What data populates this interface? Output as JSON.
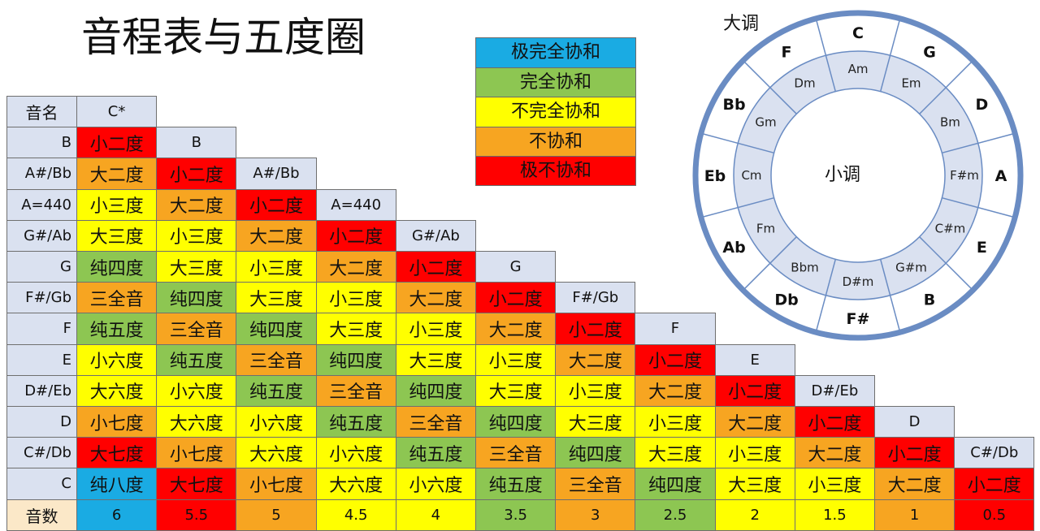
{
  "title": "音程表与五度圈",
  "legend": [
    {
      "label": "极完全协和",
      "color": "#1aabe3"
    },
    {
      "label": "完全协和",
      "color": "#8dc652"
    },
    {
      "label": "不完全协和",
      "color": "#ffff00"
    },
    {
      "label": "不协和",
      "color": "#f7a521"
    },
    {
      "label": "极不协和",
      "color": "#ff0000"
    }
  ],
  "chart_data": {
    "type": "table",
    "corner_label": "音名",
    "top_header": "C*",
    "bottom_label": "音数",
    "row_labels": [
      "B",
      "A#/Bb",
      "A=440",
      "G#/Ab",
      "G",
      "F#/Gb",
      "F",
      "E",
      "D#/Eb",
      "D",
      "C#/Db",
      "C"
    ],
    "step_headers": [
      "B",
      "A#/Bb",
      "A=440",
      "G#/Ab",
      "G",
      "F#/Gb",
      "F",
      "E",
      "D#/Eb",
      "D",
      "C#/Db"
    ],
    "interval_cycle": [
      "小二度",
      "大二度",
      "小三度",
      "大三度",
      "纯四度",
      "三全音",
      "纯五度",
      "小六度",
      "大六度",
      "小七度",
      "大七度",
      "纯八度"
    ],
    "interval_colors": [
      "#ff0000",
      "#f7a521",
      "#ffff00",
      "#ffff00",
      "#8dc652",
      "#f7a521",
      "#8dc652",
      "#ffff00",
      "#ffff00",
      "#f7a521",
      "#ff0000",
      "#1aabe3"
    ],
    "counts": [
      "6",
      "5.5",
      "5",
      "4.5",
      "4",
      "3.5",
      "3",
      "2.5",
      "2",
      "1.5",
      "1",
      "0.5"
    ],
    "count_colors": [
      "#1aabe3",
      "#ff0000",
      "#f7a521",
      "#ffff00",
      "#ffff00",
      "#8dc652",
      "#f7a521",
      "#8dc652",
      "#ffff00",
      "#ffff00",
      "#f7a521",
      "#ff0000"
    ]
  },
  "circle": {
    "major_label": "大调",
    "minor_label": "小调",
    "major_keys": [
      "C",
      "G",
      "D",
      "A",
      "E",
      "B",
      "F#",
      "Db",
      "Ab",
      "Eb",
      "Bb",
      "F"
    ],
    "minor_keys": [
      "Am",
      "Em",
      "Bm",
      "F#m",
      "C#m",
      "G#m",
      "D#m",
      "Bbm",
      "Fm",
      "Cm",
      "Gm",
      "Dm"
    ],
    "ring_color": "#6a8cc3",
    "inner_fill": "#dae1f0"
  }
}
